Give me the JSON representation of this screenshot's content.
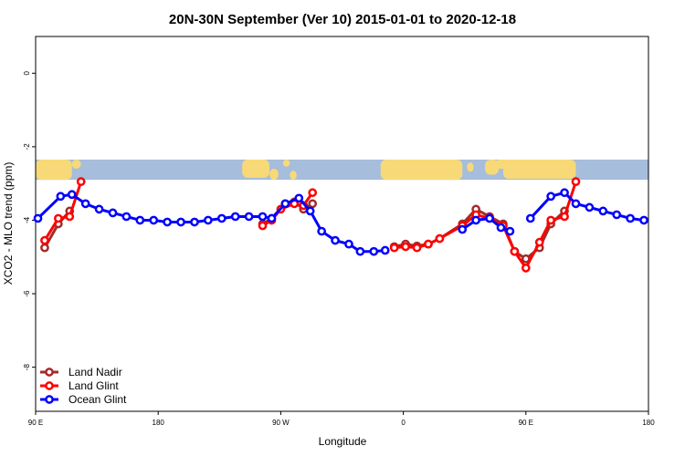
{
  "chart_data": {
    "type": "line",
    "title": "20N-30N September (Ver 10)   2015-01-01 to 2020-12-18",
    "xlabel": "Longitude",
    "ylabel": "XCO2 - MLO trend (ppm)",
    "xlim": [
      -90,
      180
    ],
    "ylim": [
      -9.2,
      1
    ],
    "x_ticks": [
      {
        "value": -90,
        "label": "90 E"
      },
      {
        "value": -36,
        "label": "180"
      },
      {
        "value": 18,
        "label": "90 W"
      },
      {
        "value": 72,
        "label": "0"
      },
      {
        "value": 126,
        "label": "90 E"
      },
      {
        "value": 180,
        "label": "180"
      }
    ],
    "y_ticks": [
      {
        "value": 0,
        "label": "0"
      },
      {
        "value": -2,
        "label": "-2"
      },
      {
        "value": -4,
        "label": "-4"
      },
      {
        "value": -6,
        "label": "-6"
      },
      {
        "value": -8,
        "label": "-8"
      }
    ],
    "grid": false,
    "legend_position": "bottom-left",
    "map_strip": {
      "y_top": -2.35,
      "y_bottom": -2.9,
      "land_color": "#f8d978",
      "ocean_color": "#a6bddb"
    },
    "series": [
      {
        "name": "Land Nadir",
        "color": "#a52a2a",
        "segments": [
          [
            [
              -86,
              -4.75
            ],
            [
              -80,
              -4.1
            ],
            [
              -75,
              -3.75
            ]
          ],
          [
            [
              10,
              -4.1
            ],
            [
              14,
              -3.95
            ],
            [
              20,
              -3.55
            ],
            [
              24,
              -3.5
            ],
            [
              28,
              -3.7
            ],
            [
              32,
              -3.55
            ]
          ],
          [
            [
              68,
              -4.72
            ],
            [
              73,
              -4.65
            ],
            [
              78,
              -4.7
            ],
            [
              83,
              -4.65
            ],
            [
              88,
              -4.5
            ],
            [
              98,
              -4.1
            ],
            [
              104,
              -3.7
            ],
            [
              110,
              -3.9
            ],
            [
              116,
              -4.1
            ],
            [
              121,
              -4.85
            ],
            [
              126,
              -5.05
            ],
            [
              132,
              -4.75
            ],
            [
              137,
              -4.1
            ],
            [
              143,
              -3.75
            ]
          ]
        ]
      },
      {
        "name": "Land Glint",
        "color": "#ff0000",
        "segments": [
          [
            [
              -86,
              -4.55
            ],
            [
              -80,
              -3.95
            ],
            [
              -75,
              -3.9
            ],
            [
              -70,
              -2.95
            ]
          ],
          [
            [
              10,
              -4.15
            ],
            [
              14,
              -4.0
            ],
            [
              18,
              -3.7
            ],
            [
              24,
              -3.55
            ],
            [
              28,
              -3.6
            ],
            [
              32,
              -3.25
            ]
          ],
          [
            [
              68,
              -4.75
            ],
            [
              73,
              -4.72
            ],
            [
              78,
              -4.75
            ],
            [
              83,
              -4.65
            ],
            [
              88,
              -4.5
            ],
            [
              98,
              -4.15
            ],
            [
              104,
              -3.85
            ],
            [
              110,
              -3.95
            ],
            [
              116,
              -4.15
            ],
            [
              121,
              -4.85
            ],
            [
              126,
              -5.3
            ],
            [
              132,
              -4.6
            ],
            [
              137,
              -4.0
            ],
            [
              143,
              -3.9
            ],
            [
              148,
              -2.95
            ]
          ]
        ]
      },
      {
        "name": "Ocean Glint",
        "color": "#0000ff",
        "segments": [
          [
            [
              -89,
              -3.95
            ],
            [
              -79,
              -3.35
            ],
            [
              -74,
              -3.3
            ],
            [
              -68,
              -3.55
            ],
            [
              -62,
              -3.7
            ],
            [
              -56,
              -3.8
            ],
            [
              -50,
              -3.9
            ],
            [
              -44,
              -4.0
            ],
            [
              -38,
              -4.0
            ],
            [
              -32,
              -4.05
            ],
            [
              -26,
              -4.05
            ],
            [
              -20,
              -4.05
            ],
            [
              -14,
              -4.0
            ],
            [
              -8,
              -3.95
            ],
            [
              -2,
              -3.9
            ],
            [
              4,
              -3.9
            ],
            [
              10,
              -3.9
            ],
            [
              14,
              -3.95
            ],
            [
              20,
              -3.55
            ],
            [
              26,
              -3.4
            ],
            [
              31,
              -3.75
            ],
            [
              36,
              -4.3
            ],
            [
              42,
              -4.55
            ],
            [
              48,
              -4.65
            ],
            [
              53,
              -4.85
            ],
            [
              59,
              -4.85
            ],
            [
              64,
              -4.82
            ]
          ],
          [
            [
              98,
              -4.25
            ],
            [
              104,
              -4.0
            ],
            [
              110,
              -3.95
            ],
            [
              115,
              -4.2
            ],
            [
              119,
              -4.3
            ]
          ],
          [
            [
              128,
              -3.95
            ],
            [
              137,
              -3.35
            ],
            [
              143,
              -3.25
            ],
            [
              148,
              -3.55
            ],
            [
              154,
              -3.65
            ],
            [
              160,
              -3.75
            ],
            [
              166,
              -3.85
            ],
            [
              172,
              -3.95
            ],
            [
              178,
              -4.0
            ]
          ]
        ]
      }
    ]
  }
}
